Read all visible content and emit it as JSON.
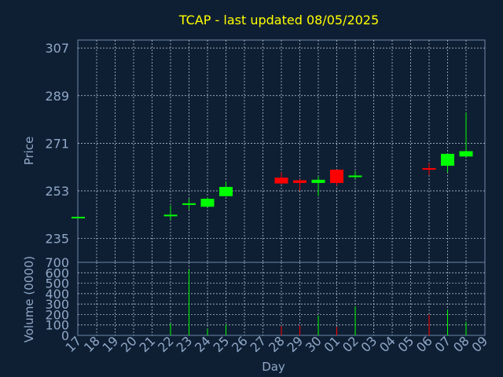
{
  "title": "TCAP - last updated 08/05/2025",
  "colors": {
    "up": "#00ff00",
    "down": "#ff0000",
    "text": "#8fa8c8",
    "title": "#ffff00",
    "background": "#0f1f33",
    "grid": "#c8d4e4"
  },
  "chart_data": [
    {
      "type": "candlestick",
      "ylabel": "Price",
      "ylim": [
        226,
        310
      ],
      "yticks": [
        "307",
        "289",
        "271",
        "253",
        "235"
      ],
      "ytick_values": [
        307,
        289,
        271,
        253,
        235
      ],
      "grid": true,
      "x_tick_labels": [
        "17",
        "18",
        "19",
        "20",
        "21",
        "22",
        "23",
        "24",
        "25",
        "26",
        "27",
        "28",
        "29",
        "30",
        "01",
        "02",
        "03",
        "04",
        "05",
        "06",
        "07",
        "08",
        "09"
      ],
      "candles": [
        {
          "x": 0,
          "open": 243.2,
          "close": 243.2,
          "high": 243.3,
          "low": 243.1,
          "dir": "up"
        },
        {
          "x": 5,
          "open": 243.5,
          "close": 244.0,
          "high": 247.5,
          "low": 242.0,
          "dir": "up"
        },
        {
          "x": 6,
          "open": 248.0,
          "close": 248.3,
          "high": 250.0,
          "low": 246.0,
          "dir": "up"
        },
        {
          "x": 7,
          "open": 247.0,
          "close": 250.0,
          "high": 250.5,
          "low": 247.0,
          "dir": "up"
        },
        {
          "x": 8,
          "open": 251.0,
          "close": 254.5,
          "high": 256.5,
          "low": 251.0,
          "dir": "up"
        },
        {
          "x": 11,
          "open": 258.0,
          "close": 255.8,
          "high": 260.0,
          "low": 255.5,
          "dir": "down"
        },
        {
          "x": 12,
          "open": 257.0,
          "close": 256.0,
          "high": 257.5,
          "low": 253.0,
          "dir": "down"
        },
        {
          "x": 13,
          "open": 256.0,
          "close": 257.2,
          "high": 258.5,
          "low": 251.0,
          "dir": "up"
        },
        {
          "x": 14,
          "open": 261.0,
          "close": 256.0,
          "high": 261.0,
          "low": 255.0,
          "dir": "down"
        },
        {
          "x": 15,
          "open": 258.5,
          "close": 258.8,
          "high": 260.5,
          "low": 257.5,
          "dir": "up"
        },
        {
          "x": 19,
          "open": 261.6,
          "close": 261.4,
          "high": 263.5,
          "low": 259.0,
          "dir": "down"
        },
        {
          "x": 20,
          "open": 262.5,
          "close": 267.0,
          "high": 267.0,
          "low": 260.0,
          "dir": "up"
        },
        {
          "x": 21,
          "open": 266.0,
          "close": 268.0,
          "high": 282.5,
          "low": 266.0,
          "dir": "up"
        }
      ]
    },
    {
      "type": "bar",
      "ylabel": "Volume (0000)",
      "xlabel": "Day",
      "ylim": [
        0,
        700
      ],
      "yticks": [
        "0",
        "100",
        "200",
        "300",
        "400",
        "500",
        "600",
        "700"
      ],
      "ytick_values": [
        0,
        100,
        200,
        300,
        400,
        500,
        600,
        700
      ],
      "grid": true,
      "bars": [
        {
          "x": 5,
          "value": 115,
          "dir": "up"
        },
        {
          "x": 6,
          "value": 630,
          "dir": "up"
        },
        {
          "x": 7,
          "value": 65,
          "dir": "up"
        },
        {
          "x": 8,
          "value": 105,
          "dir": "up"
        },
        {
          "x": 11,
          "value": 90,
          "dir": "down"
        },
        {
          "x": 12,
          "value": 95,
          "dir": "down"
        },
        {
          "x": 13,
          "value": 190,
          "dir": "up"
        },
        {
          "x": 14,
          "value": 80,
          "dir": "down"
        },
        {
          "x": 15,
          "value": 280,
          "dir": "up"
        },
        {
          "x": 19,
          "value": 200,
          "dir": "down"
        },
        {
          "x": 20,
          "value": 245,
          "dir": "up"
        },
        {
          "x": 21,
          "value": 130,
          "dir": "up"
        }
      ]
    }
  ]
}
